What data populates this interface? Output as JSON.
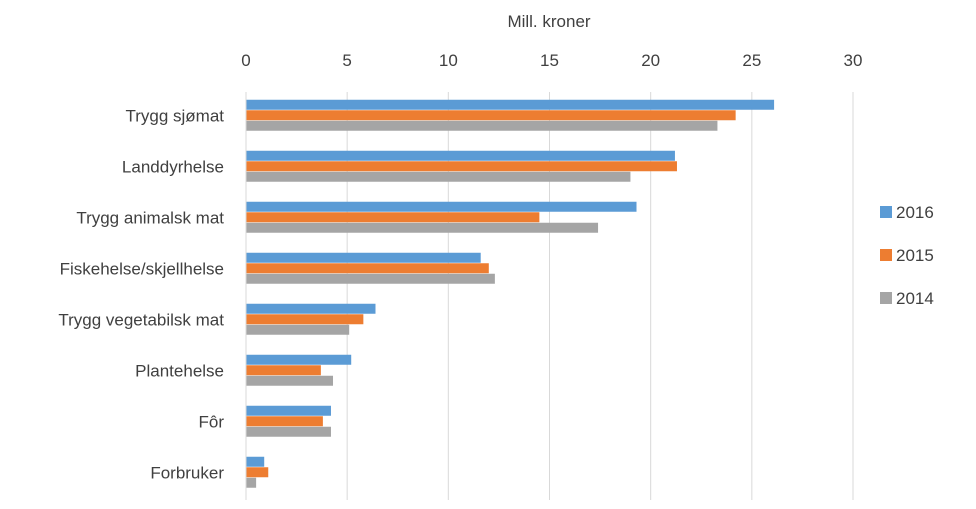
{
  "chart_data": {
    "type": "bar",
    "orientation": "horizontal",
    "xlabel": "Mill. kroner",
    "xlim": [
      0,
      30
    ],
    "xticks": [
      0,
      5,
      10,
      15,
      20,
      25,
      30
    ],
    "grid": true,
    "legend_position": "right",
    "categories": [
      "Trygg sjømat",
      "Landdyrhelse",
      "Trygg animalsk mat",
      "Fiskehelse/skjellhelse",
      "Trygg vegetabilsk mat",
      "Plantehelse",
      "Fôr",
      "Forbruker"
    ],
    "series": [
      {
        "name": "2016",
        "color": "#5b9bd5",
        "values": [
          26.1,
          21.2,
          19.3,
          11.6,
          6.4,
          5.2,
          4.2,
          0.9
        ]
      },
      {
        "name": "2015",
        "color": "#ed7d31",
        "values": [
          24.2,
          21.3,
          14.5,
          12.0,
          5.8,
          3.7,
          3.8,
          1.1
        ]
      },
      {
        "name": "2014",
        "color": "#a5a5a5",
        "values": [
          23.3,
          19.0,
          17.4,
          12.3,
          5.1,
          4.3,
          4.2,
          0.5
        ]
      }
    ]
  }
}
